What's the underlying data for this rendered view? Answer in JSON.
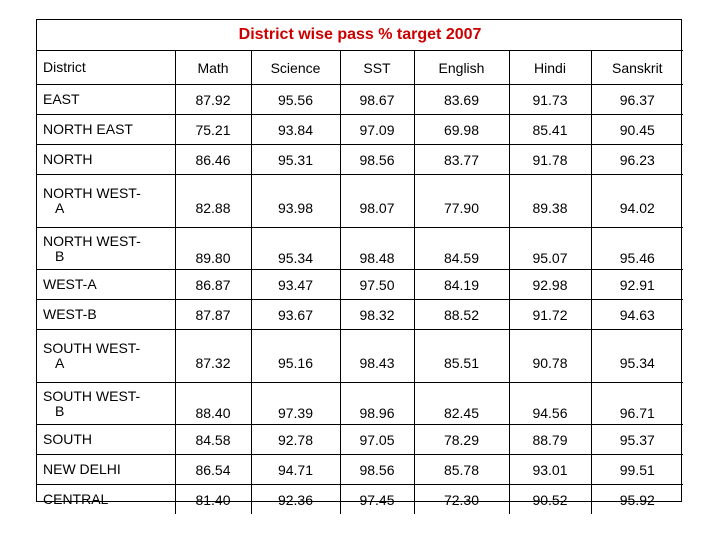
{
  "title": "District wise  pass % target 2007",
  "headers": [
    "District",
    "Math",
    "Science",
    "SST",
    "English",
    "Hindi",
    "Sanskrit"
  ],
  "rows": [
    {
      "district": [
        "EAST",
        ""
      ],
      "values": [
        "87.92",
        "95.56",
        "98.67",
        "83.69",
        "91.73",
        "96.37"
      ]
    },
    {
      "district": [
        "NORTH EAST",
        ""
      ],
      "values": [
        "75.21",
        "93.84",
        "97.09",
        "69.98",
        "85.41",
        "90.45"
      ]
    },
    {
      "district": [
        "NORTH",
        ""
      ],
      "values": [
        "86.46",
        "95.31",
        "98.56",
        "83.77",
        "91.78",
        "96.23"
      ]
    },
    {
      "district": [
        "NORTH WEST-",
        "A"
      ],
      "values": [
        "82.88",
        "93.98",
        "98.07",
        "77.90",
        "89.38",
        "94.02"
      ]
    },
    {
      "district": [
        "NORTH WEST-",
        "B"
      ],
      "values": [
        "89.80",
        "95.34",
        "98.48",
        "84.59",
        "95.07",
        "95.46"
      ]
    },
    {
      "district": [
        "WEST-A",
        ""
      ],
      "values": [
        "86.87",
        "93.47",
        "97.50",
        "84.19",
        "92.98",
        "92.91"
      ]
    },
    {
      "district": [
        "WEST-B",
        ""
      ],
      "values": [
        "87.87",
        "93.67",
        "98.32",
        "88.52",
        "91.72",
        "94.63"
      ]
    },
    {
      "district": [
        "SOUTH WEST-",
        "A"
      ],
      "values": [
        "87.32",
        "95.16",
        "98.43",
        "85.51",
        "90.78",
        "95.34"
      ]
    },
    {
      "district": [
        "SOUTH WEST-",
        "B"
      ],
      "values": [
        "88.40",
        "97.39",
        "98.96",
        "82.45",
        "94.56",
        "96.71"
      ]
    },
    {
      "district": [
        "SOUTH",
        ""
      ],
      "values": [
        "84.58",
        "92.78",
        "97.05",
        "78.29",
        "88.79",
        "95.37"
      ]
    },
    {
      "district": [
        "NEW DELHI",
        ""
      ],
      "values": [
        "86.54",
        "94.71",
        "98.56",
        "85.78",
        "93.01",
        "99.51"
      ]
    },
    {
      "district": [
        "CENTRAL",
        ""
      ],
      "values": [
        "81.40",
        "92.36",
        "97.45",
        "72.30",
        "90.52",
        "95.92"
      ]
    }
  ],
  "colors": {
    "title": "#cc0000",
    "border": "#000000"
  }
}
